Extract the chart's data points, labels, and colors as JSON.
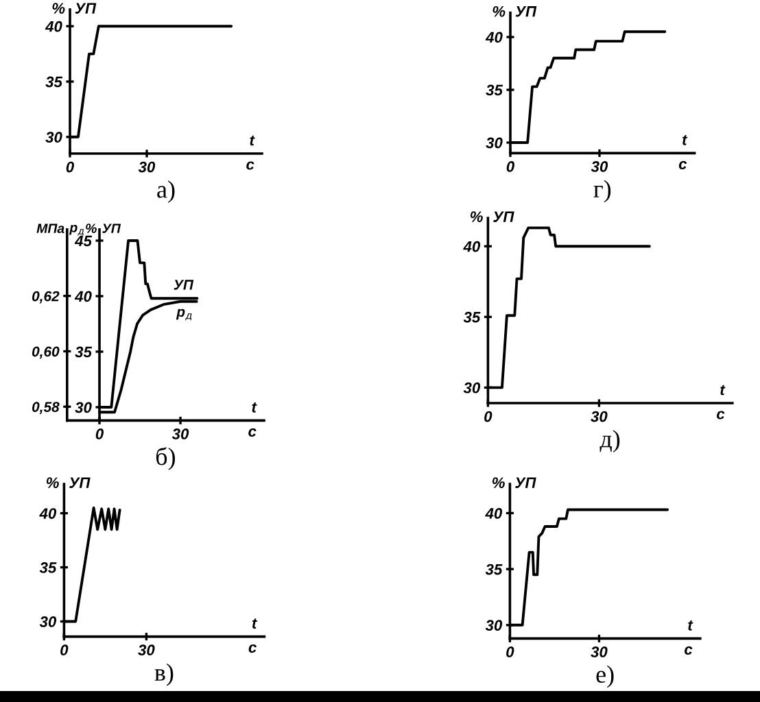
{
  "chart_data": [
    {
      "type": "line",
      "title": "а)",
      "xlabel": "t\nс",
      "ylabel": "% УП",
      "xlim": [
        0,
        75
      ],
      "ylim": [
        28.5,
        41.5
      ],
      "xticks": [
        0,
        30
      ],
      "yticks": [
        30,
        35,
        40
      ],
      "series": [
        {
          "color": "#000000",
          "x": [
            0,
            3.2,
            7.5,
            9.2,
            11.2,
            63
          ],
          "values": [
            30,
            30,
            37.5,
            37.5,
            40,
            40
          ]
        }
      ]
    },
    {
      "type": "line",
      "title": "г)",
      "xlabel": "t\nс",
      "ylabel": "% УП",
      "xlim": [
        0,
        62
      ],
      "ylim": [
        29,
        42.3
      ],
      "xticks": [
        0,
        30
      ],
      "yticks": [
        30,
        35,
        40
      ],
      "series": [
        {
          "color": "#000000",
          "x": [
            0,
            5.8,
            7.4,
            8.9,
            10,
            11.5,
            12.6,
            13.5,
            14.6,
            21.5,
            22,
            28.2,
            28.8,
            37.7,
            38.5,
            52
          ],
          "values": [
            30,
            30,
            35.3,
            35.3,
            36.1,
            36.1,
            37.1,
            37.1,
            38,
            38,
            38.8,
            38.8,
            39.6,
            39.6,
            40.5,
            40.5
          ]
        }
      ]
    },
    {
      "type": "line",
      "title": "б)",
      "xlabel": "t\nс",
      "ylabel": "% УП",
      "y2label": "МПа p$_{д}$",
      "xlim": [
        -12,
        61
      ],
      "ylim": [
        28.8,
        46
      ],
      "xticks": [
        0,
        30
      ],
      "yticks": [
        30,
        35,
        40,
        45
      ],
      "y2lim": [
        0.575,
        0.644
      ],
      "y2ticks": [
        {
          "value": 0.58,
          "label": "0,58"
        },
        {
          "value": 0.6,
          "label": "0,60"
        },
        {
          "value": 0.62,
          "label": "0,62"
        }
      ],
      "series": [
        {
          "name": "УП",
          "color": "#000000",
          "x": [
            0,
            4.4,
            10.7,
            14.1,
            15,
            16.6,
            17.1,
            17.8,
            18.4,
            19.2,
            36.2
          ],
          "values": [
            30,
            30,
            45,
            45,
            43,
            43,
            41.1,
            41.1,
            40.5,
            39.8,
            39.8
          ]
        },
        {
          "name": "p$_{д}$",
          "color": "#000000",
          "axis": "y2",
          "x": [
            0,
            5.6,
            8,
            10,
            11.5,
            12.5,
            14,
            16,
            19,
            24,
            30,
            36
          ],
          "values": [
            0.578,
            0.578,
            0.586,
            0.594,
            0.6,
            0.605,
            0.61,
            0.613,
            0.615,
            0.617,
            0.618,
            0.618
          ]
        }
      ]
    },
    {
      "type": "line",
      "title": "д)",
      "xlabel": "t\nс",
      "ylabel": "% УП",
      "xlim": [
        0,
        66
      ],
      "ylim": [
        28.9,
        42
      ],
      "xticks": [
        0,
        30
      ],
      "yticks": [
        30,
        35,
        40
      ],
      "series": [
        {
          "color": "#000000",
          "x": [
            0,
            3.8,
            5.1,
            7.2,
            7.8,
            9,
            9.6,
            10.9,
            16.4,
            16.9,
            17.9,
            18.3,
            43.6
          ],
          "values": [
            30,
            30,
            35.1,
            35.1,
            37.7,
            37.7,
            40.6,
            41.3,
            41.3,
            40.8,
            40.8,
            40,
            40
          ]
        }
      ]
    },
    {
      "type": "line",
      "title": "в)",
      "xlabel": "t\nс",
      "ylabel": "% УП",
      "xlim": [
        0,
        73
      ],
      "ylim": [
        28.6,
        42.7
      ],
      "xticks": [
        0,
        30
      ],
      "yticks": [
        30,
        35,
        40
      ],
      "series": [
        {
          "color": "#000000",
          "x": [
            0,
            4.2,
            10.8,
            12.2,
            13.7,
            15,
            16.2,
            17.3,
            18.3,
            19.3,
            20.3
          ],
          "values": [
            30,
            30,
            40.5,
            38.5,
            40.4,
            38.5,
            40.4,
            38.5,
            40.4,
            38.5,
            40.3
          ]
        }
      ]
    },
    {
      "type": "line",
      "title": "е)",
      "xlabel": "t\nс",
      "ylabel": "% УП",
      "xlim": [
        0,
        64
      ],
      "ylim": [
        28.8,
        42.6
      ],
      "xticks": [
        0,
        30
      ],
      "yticks": [
        30,
        35,
        40
      ],
      "series": [
        {
          "color": "#000000",
          "x": [
            0,
            4.2,
            6.5,
            7.7,
            8,
            9.2,
            9.7,
            10.8,
            11.8,
            15.8,
            16.5,
            18.9,
            19.5,
            53
          ],
          "values": [
            30,
            30,
            36.5,
            36.5,
            34.5,
            34.5,
            37.9,
            38.2,
            38.8,
            38.8,
            39.5,
            39.5,
            40.3,
            40.3
          ]
        }
      ]
    }
  ]
}
